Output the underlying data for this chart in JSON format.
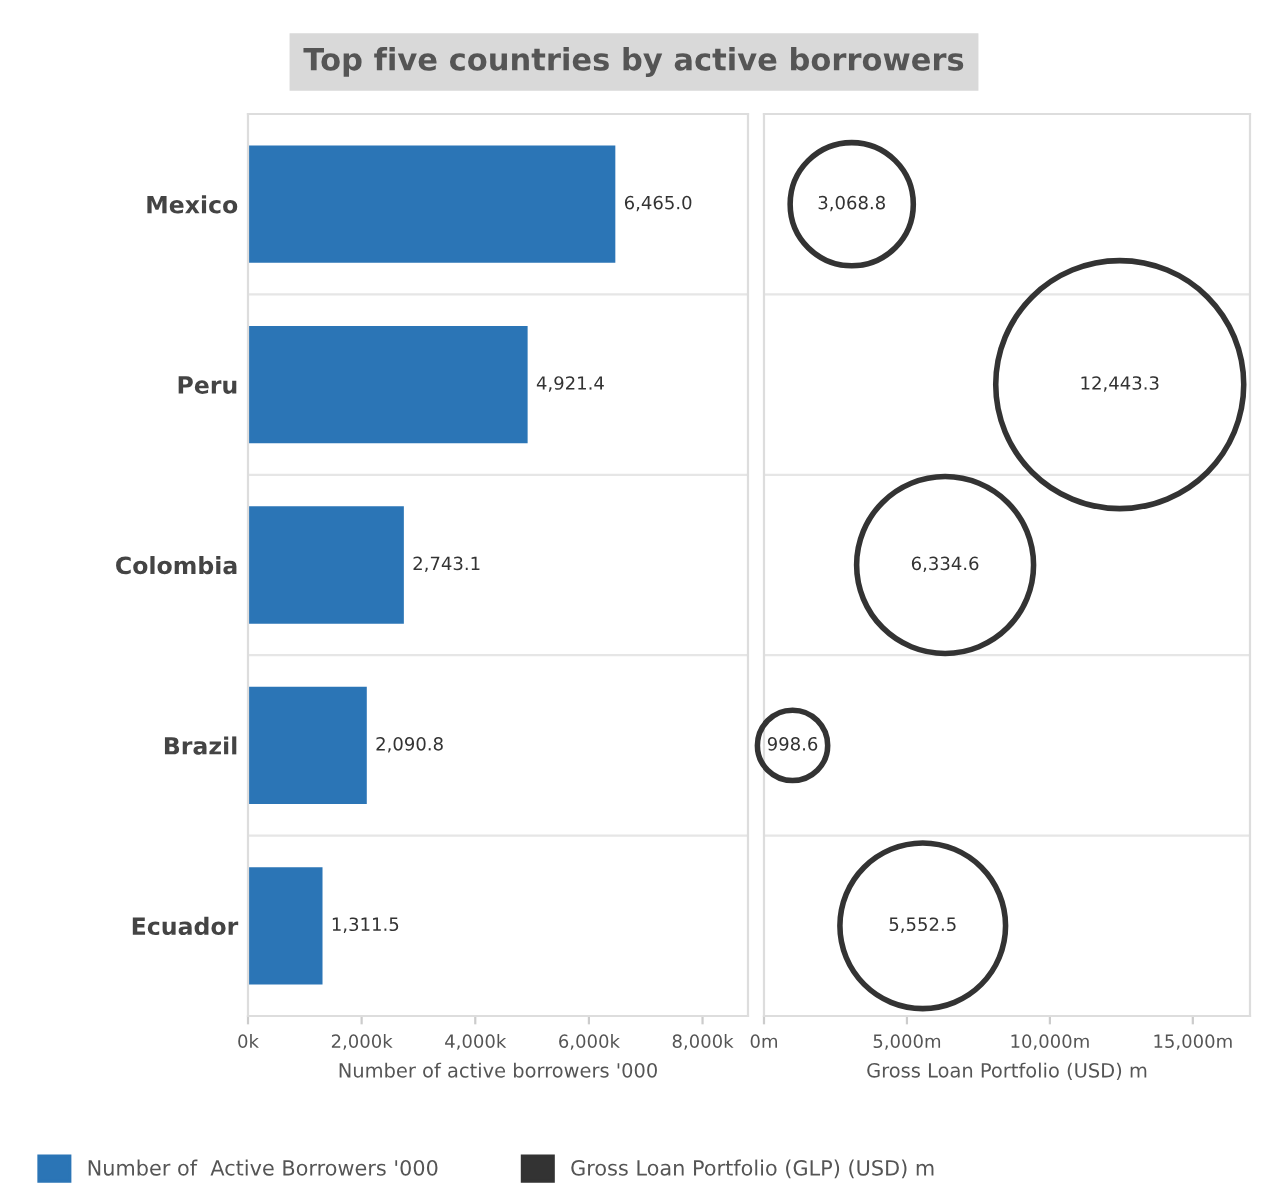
{
  "chart_data": [
    {
      "type": "bar",
      "title": "Top five countries by active borrowers",
      "orientation": "horizontal",
      "categories": [
        "Mexico",
        "Peru",
        "Colombia",
        "Brazil",
        "Ecuador"
      ],
      "xlabel": "Number of active borrowers '000",
      "xlim": [
        0,
        8800
      ],
      "xticks": [
        {
          "value": 0,
          "label": "0k"
        },
        {
          "value": 2000,
          "label": "2,000k"
        },
        {
          "value": 4000,
          "label": "4,000k"
        },
        {
          "value": 6000,
          "label": "6,000k"
        },
        {
          "value": 8000,
          "label": "8,000k"
        }
      ],
      "series": [
        {
          "name": "Number of  Active Borrowers '000",
          "color": "#2b75b6",
          "values": [
            6465.0,
            4921.4,
            2743.1,
            2090.8,
            1311.5
          ]
        }
      ],
      "value_labels": [
        "6,465.0",
        "4,921.4",
        "2,743.1",
        "2,090.8",
        "1,311.5"
      ],
      "legend": "bottom"
    },
    {
      "type": "bubble",
      "orientation": "horizontal",
      "categories": [
        null,
        null,
        null,
        null,
        null
      ],
      "xlabel": "Gross Loan Portfolio (USD) m",
      "xlim": [
        0,
        17000
      ],
      "xticks": [
        {
          "value": 0,
          "label": "0m"
        },
        {
          "value": 5000,
          "label": "5,000m"
        },
        {
          "value": 10000,
          "label": "10,000m"
        },
        {
          "value": 15000,
          "label": "15,000m"
        }
      ],
      "series": [
        {
          "name": "Gross Loan Portfolio (GLP) (USD) m",
          "color": "#333333",
          "values": [
            3068.8,
            12443.3,
            6334.6,
            998.6,
            5552.5
          ],
          "sizes": [
            0.2466,
            1,
            0.5091,
            0.0803,
            0.4462
          ]
        }
      ],
      "value_labels": [
        "3,068.8",
        "12,443.3",
        "6,334.6",
        "998.6",
        "5,552.5"
      ],
      "legend": "bottom"
    }
  ]
}
